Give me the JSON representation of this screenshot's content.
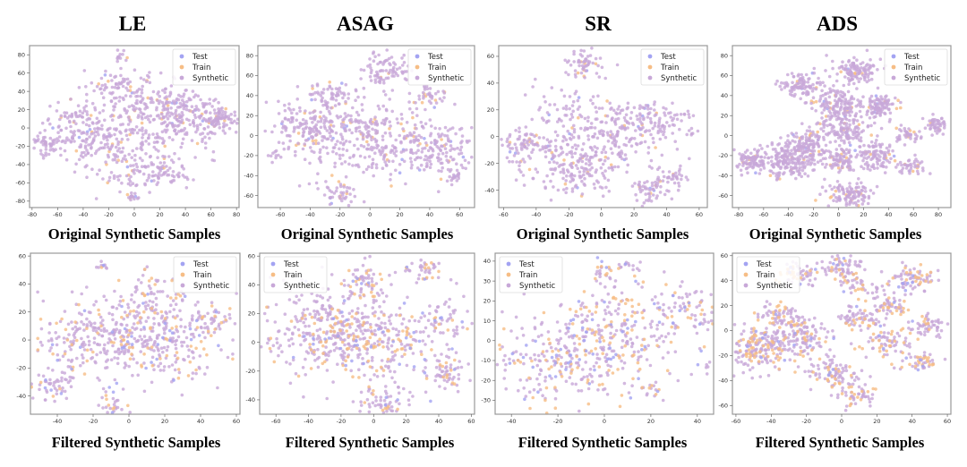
{
  "columns": [
    "LE",
    "ASAG",
    "SR",
    "ADS"
  ],
  "row_labels": [
    "Original Synthetic Samples",
    "Filtered Synthetic Samples"
  ],
  "legend": {
    "test": "Test",
    "train": "Train",
    "synthetic": "Synthetic"
  },
  "colors": {
    "test": "#a3a3f2",
    "train": "#f6bd85",
    "synthetic": "#c8a8d8"
  },
  "chart_data": [
    {
      "type": "scatter",
      "title": "LE",
      "subtitle": "Original Synthetic Samples",
      "legend": "top-right",
      "xlim": [
        -82,
        82
      ],
      "ylim": [
        -87,
        90
      ],
      "xticks": [
        -80,
        -60,
        -40,
        -20,
        0,
        20,
        40,
        60,
        80
      ],
      "yticks": [
        -80,
        -60,
        -40,
        -20,
        0,
        20,
        40,
        60,
        80
      ],
      "train_frac": 0.05,
      "test_frac": 0.02,
      "clusters": [
        [
          -68,
          -18,
          6,
          40
        ],
        [
          -52,
          12,
          4,
          15
        ],
        [
          -35,
          -5,
          18,
          200
        ],
        [
          0,
          -42,
          16,
          130
        ],
        [
          20,
          20,
          20,
          250
        ],
        [
          45,
          5,
          16,
          120
        ],
        [
          68,
          12,
          6,
          60
        ],
        [
          -10,
          78,
          3,
          12
        ],
        [
          28,
          -52,
          7,
          40
        ],
        [
          -15,
          45,
          10,
          50
        ],
        [
          0,
          -75,
          3,
          10
        ]
      ]
    },
    {
      "type": "scatter",
      "title": "ASAG",
      "subtitle": "Original Synthetic Samples",
      "legend": "top-right",
      "xlim": [
        -75,
        70
      ],
      "ylim": [
        -72,
        90
      ],
      "xticks": [
        -60,
        -40,
        -20,
        0,
        20,
        40,
        60
      ],
      "yticks": [
        -60,
        -40,
        -20,
        0,
        20,
        40,
        60,
        80
      ],
      "train_frac": 0.06,
      "test_frac": 0.02,
      "clusters": [
        [
          -65,
          -20,
          4,
          10
        ],
        [
          -40,
          10,
          14,
          150
        ],
        [
          0,
          -5,
          22,
          300
        ],
        [
          10,
          65,
          9,
          80
        ],
        [
          38,
          40,
          7,
          40
        ],
        [
          40,
          -15,
          16,
          150
        ],
        [
          55,
          -40,
          4,
          20
        ],
        [
          -20,
          -60,
          6,
          40
        ],
        [
          -25,
          40,
          8,
          60
        ]
      ]
    },
    {
      "type": "scatter",
      "title": "SR",
      "subtitle": "Original Synthetic Samples",
      "legend": "top-right",
      "xlim": [
        -63,
        65
      ],
      "ylim": [
        -53,
        68
      ],
      "xticks": [
        -60,
        -40,
        -20,
        0,
        20,
        40,
        60
      ],
      "yticks": [
        -40,
        -20,
        0,
        20,
        40,
        60
      ],
      "train_frac": 0.06,
      "test_frac": 0.02,
      "clusters": [
        [
          -10,
          55,
          6,
          60
        ],
        [
          -45,
          -5,
          8,
          80
        ],
        [
          -15,
          -20,
          14,
          200
        ],
        [
          15,
          5,
          14,
          200
        ],
        [
          30,
          -40,
          7,
          60
        ],
        [
          45,
          -30,
          4,
          30
        ],
        [
          40,
          15,
          8,
          50
        ],
        [
          -20,
          20,
          11,
          60
        ],
        [
          55,
          3,
          2,
          6
        ]
      ]
    },
    {
      "type": "scatter",
      "title": "ADS",
      "subtitle": "Original Synthetic Samples",
      "legend": "top-right",
      "xlim": [
        -85,
        90
      ],
      "ylim": [
        -72,
        90
      ],
      "xticks": [
        -80,
        -60,
        -40,
        -20,
        0,
        20,
        40,
        60,
        80
      ],
      "yticks": [
        -60,
        -40,
        -20,
        0,
        20,
        40,
        60,
        80
      ],
      "train_frac": 0.06,
      "test_frac": 0.015,
      "clusters": [
        [
          -70,
          -25,
          6,
          90
        ],
        [
          -40,
          -25,
          10,
          200
        ],
        [
          -25,
          -8,
          8,
          120
        ],
        [
          -30,
          50,
          7,
          100
        ],
        [
          0,
          30,
          9,
          150
        ],
        [
          15,
          65,
          8,
          120
        ],
        [
          32,
          30,
          6,
          100
        ],
        [
          5,
          5,
          9,
          120
        ],
        [
          30,
          -20,
          7,
          100
        ],
        [
          55,
          0,
          5,
          40
        ],
        [
          58,
          -30,
          5,
          40
        ],
        [
          78,
          10,
          4,
          50
        ],
        [
          10,
          -60,
          8,
          120
        ],
        [
          0,
          -25,
          7,
          80
        ]
      ]
    },
    {
      "type": "scatter",
      "title": "LE",
      "subtitle": "Filtered Synthetic Samples",
      "legend": "top-right",
      "xlim": [
        -55,
        62
      ],
      "ylim": [
        -53,
        62
      ],
      "xticks": [
        -40,
        -20,
        0,
        20,
        40,
        60
      ],
      "yticks": [
        -40,
        -20,
        0,
        20,
        40,
        60
      ],
      "train_frac": 0.2,
      "test_frac": 0.06,
      "clusters": [
        [
          -43,
          -32,
          5,
          50
        ],
        [
          -15,
          52,
          2,
          10
        ],
        [
          -20,
          0,
          16,
          250
        ],
        [
          10,
          30,
          10,
          80
        ],
        [
          20,
          0,
          16,
          250
        ],
        [
          45,
          15,
          6,
          40
        ],
        [
          -10,
          -48,
          4,
          30
        ]
      ]
    },
    {
      "type": "scatter",
      "title": "ASAG",
      "subtitle": "Filtered Synthetic Samples",
      "legend": "top-left",
      "xlim": [
        -70,
        62
      ],
      "ylim": [
        -50,
        62
      ],
      "xticks": [
        -60,
        -40,
        -20,
        0,
        20,
        40,
        60
      ],
      "yticks": [
        -40,
        -20,
        0,
        20,
        40,
        60
      ],
      "train_frac": 0.2,
      "test_frac": 0.06,
      "clusters": [
        [
          -62,
          -2,
          3,
          8
        ],
        [
          -30,
          10,
          16,
          250
        ],
        [
          0,
          0,
          18,
          300
        ],
        [
          -5,
          42,
          6,
          60
        ],
        [
          30,
          50,
          6,
          40
        ],
        [
          45,
          -20,
          6,
          60
        ],
        [
          45,
          15,
          8,
          50
        ],
        [
          5,
          -40,
          7,
          60
        ]
      ]
    },
    {
      "type": "scatter",
      "title": "SR",
      "subtitle": "Filtered Synthetic Samples",
      "legend": "top-left",
      "xlim": [
        -47,
        47
      ],
      "ylim": [
        -37,
        44
      ],
      "xticks": [
        -40,
        -20,
        0,
        20,
        40
      ],
      "yticks": [
        -30,
        -20,
        -10,
        0,
        10,
        20,
        30,
        40
      ],
      "train_frac": 0.25,
      "test_frac": 0.1,
      "clusters": [
        [
          -20,
          -10,
          13,
          250
        ],
        [
          10,
          5,
          14,
          250
        ],
        [
          0,
          36,
          3,
          20
        ],
        [
          10,
          38,
          3,
          15
        ],
        [
          35,
          20,
          5,
          40
        ],
        [
          42,
          10,
          3,
          15
        ],
        [
          20,
          -25,
          3,
          20
        ],
        [
          44,
          -13,
          2,
          10
        ]
      ]
    },
    {
      "type": "scatter",
      "title": "ADS",
      "subtitle": "Filtered Synthetic Samples",
      "legend": "top-left",
      "xlim": [
        -62,
        62
      ],
      "ylim": [
        -67,
        62
      ],
      "xticks": [
        -60,
        -40,
        -20,
        0,
        20,
        40,
        60
      ],
      "yticks": [
        -60,
        -40,
        -20,
        0,
        20,
        40,
        60
      ],
      "train_frac": 0.25,
      "test_frac": 0.05,
      "clusters": [
        [
          -45,
          -15,
          9,
          180
        ],
        [
          -25,
          -5,
          9,
          150
        ],
        [
          -35,
          12,
          6,
          60
        ],
        [
          -25,
          45,
          5,
          60
        ],
        [
          0,
          50,
          6,
          70
        ],
        [
          10,
          35,
          5,
          40
        ],
        [
          10,
          10,
          6,
          70
        ],
        [
          -5,
          -35,
          7,
          90
        ],
        [
          25,
          -10,
          6,
          60
        ],
        [
          30,
          20,
          5,
          50
        ],
        [
          40,
          42,
          6,
          80
        ],
        [
          45,
          -25,
          5,
          50
        ],
        [
          45,
          0,
          5,
          40
        ],
        [
          52,
          6,
          3,
          20
        ],
        [
          10,
          -52,
          5,
          50
        ]
      ]
    }
  ]
}
